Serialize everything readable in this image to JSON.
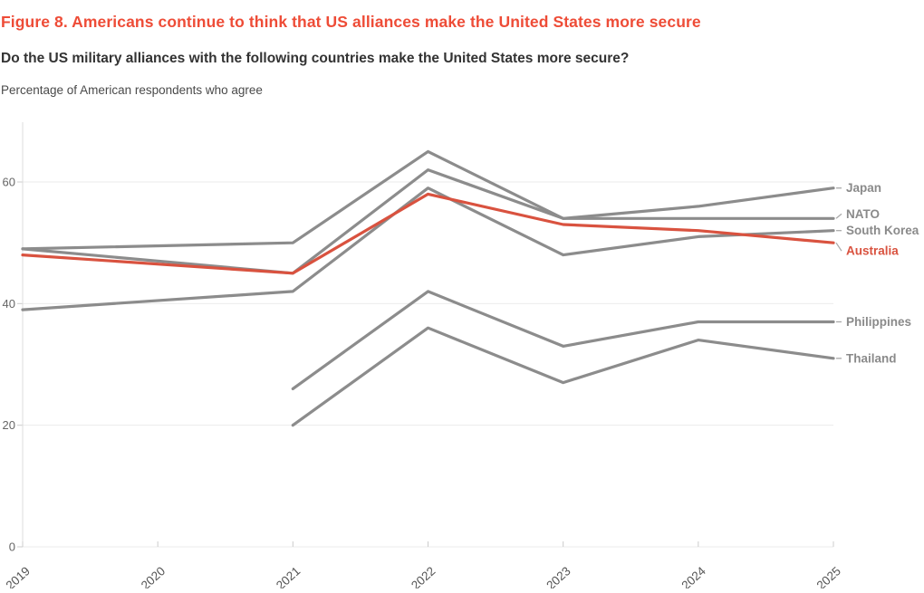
{
  "header": {
    "figure_title": "Figure 8. Americans continue to think that US alliances make the United States more secure",
    "question": "Do the US military alliances with the following countries make the United States more secure?",
    "subtitle": "Percentage of American respondents who agree"
  },
  "colors": {
    "title": "#ee4c37",
    "highlight": "#d9523f",
    "line_grey": "#8c8c8c",
    "label_grey": "#8a8a8a",
    "axis_text": "#666666",
    "x_axis_text": "#555555",
    "grid": "#ebebeb",
    "axis_line": "#dddddd",
    "tick": "#cccccc",
    "leader": "#aaaaaa"
  },
  "chart_data": {
    "type": "line",
    "x": [
      2019,
      2020,
      2021,
      2022,
      2023,
      2024,
      2025
    ],
    "x_tick_labels": [
      "2019",
      "2020",
      "2021",
      "2022",
      "2023",
      "2024",
      "2025"
    ],
    "yticks": [
      0,
      20,
      40,
      60
    ],
    "ytick_labels": [
      "0",
      "20",
      "40",
      "60"
    ],
    "ylim": [
      0,
      70
    ],
    "grid": true,
    "legend_position": "right-of-line-end",
    "title": "Figure 8. Americans continue to think that US alliances make the United States more secure",
    "xlabel": "",
    "ylabel": "Percentage of American respondents who agree",
    "series": [
      {
        "name": "Japan",
        "color": "grey",
        "values": [
          49,
          null,
          50,
          65,
          54,
          56,
          59
        ]
      },
      {
        "name": "NATO",
        "color": "grey",
        "values": [
          49,
          null,
          45,
          62,
          54,
          54,
          54
        ]
      },
      {
        "name": "South Korea",
        "color": "grey",
        "values": [
          39,
          null,
          42,
          59,
          48,
          51,
          52
        ]
      },
      {
        "name": "Philippines",
        "color": "grey",
        "values": [
          null,
          null,
          26,
          42,
          33,
          37,
          37
        ]
      },
      {
        "name": "Thailand",
        "color": "grey",
        "values": [
          null,
          null,
          20,
          36,
          27,
          34,
          31
        ]
      },
      {
        "name": "Australia",
        "color": "highlight",
        "values": [
          48,
          null,
          45,
          58,
          53,
          52,
          50
        ]
      }
    ]
  }
}
